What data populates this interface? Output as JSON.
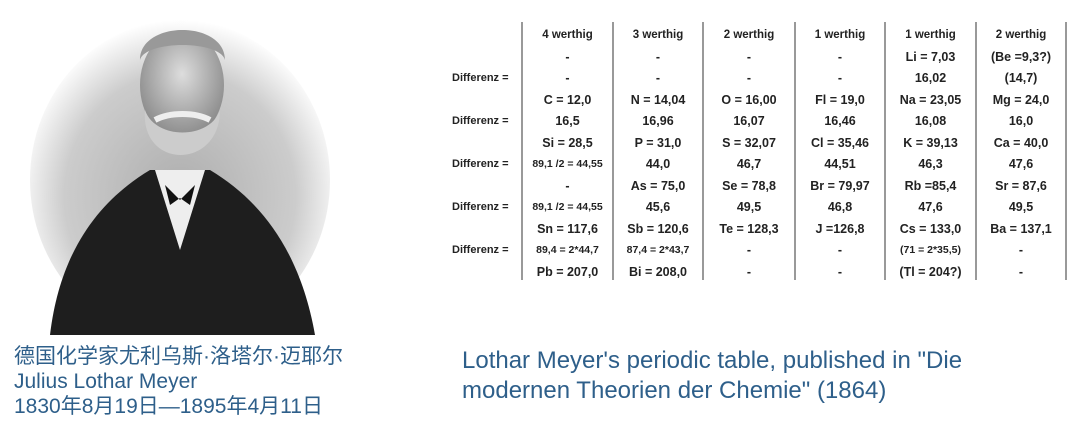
{
  "portrait": {
    "subject": "Julius Lothar Meyer"
  },
  "caption_left": {
    "chinese_name": "德国化学家尤利乌斯·洛塔尔·迈耶尔",
    "name": "Julius Lothar Meyer",
    "dates": "1830年8月19日—1895年4月11日"
  },
  "caption_right": {
    "text": "Lothar Meyer's periodic table, published in \"Die modernen Theorien der Chemie\" (1864)"
  },
  "caption_color": "#2e5f8a",
  "table": {
    "row_label": "Differenz =",
    "headers": [
      "4 werthig",
      "3 werthig",
      "2 werthig",
      "1 werthig",
      "1 werthig",
      "2 werthig"
    ],
    "rows": [
      {
        "diff": false,
        "cells": [
          "-",
          "-",
          "-",
          "-",
          "Li  =  7,03",
          "(Be =9,3?)"
        ]
      },
      {
        "diff": true,
        "cells": [
          "-",
          "-",
          "-",
          "-",
          "16,02",
          "(14,7)"
        ]
      },
      {
        "diff": false,
        "cells": [
          "C = 12,0",
          "N = 14,04",
          "O = 16,00",
          "Fl = 19,0",
          "Na = 23,05",
          "Mg = 24,0"
        ]
      },
      {
        "diff": true,
        "cells": [
          "16,5",
          "16,96",
          "16,07",
          "16,46",
          "16,08",
          "16,0"
        ]
      },
      {
        "diff": false,
        "cells": [
          "Si = 28,5",
          "P = 31,0",
          "S = 32,07",
          "Cl = 35,46",
          "K = 39,13",
          "Ca = 40,0"
        ]
      },
      {
        "diff": true,
        "cells": [
          "89,1 /2 = 44,55",
          "44,0",
          "46,7",
          "44,51",
          "46,3",
          "47,6"
        ]
      },
      {
        "diff": false,
        "cells": [
          "-",
          "As = 75,0",
          "Se = 78,8",
          "Br = 79,97",
          "Rb =85,4",
          "Sr = 87,6"
        ]
      },
      {
        "diff": true,
        "cells": [
          "89,1 /2 = 44,55",
          "45,6",
          "49,5",
          "46,8",
          "47,6",
          "49,5"
        ]
      },
      {
        "diff": false,
        "cells": [
          "Sn = 117,6",
          "Sb = 120,6",
          "Te = 128,3",
          "J =126,8",
          "Cs = 133,0",
          "Ba = 137,1"
        ]
      },
      {
        "diff": true,
        "cells": [
          "89,4 = 2*44,7",
          "87,4 = 2*43,7",
          "-",
          "-",
          "(71 = 2*35,5)",
          "-"
        ]
      },
      {
        "diff": false,
        "cells": [
          "Pb = 207,0",
          "Bi = 208,0",
          "-",
          "-",
          "(Tl = 204?)",
          "-"
        ]
      }
    ]
  }
}
